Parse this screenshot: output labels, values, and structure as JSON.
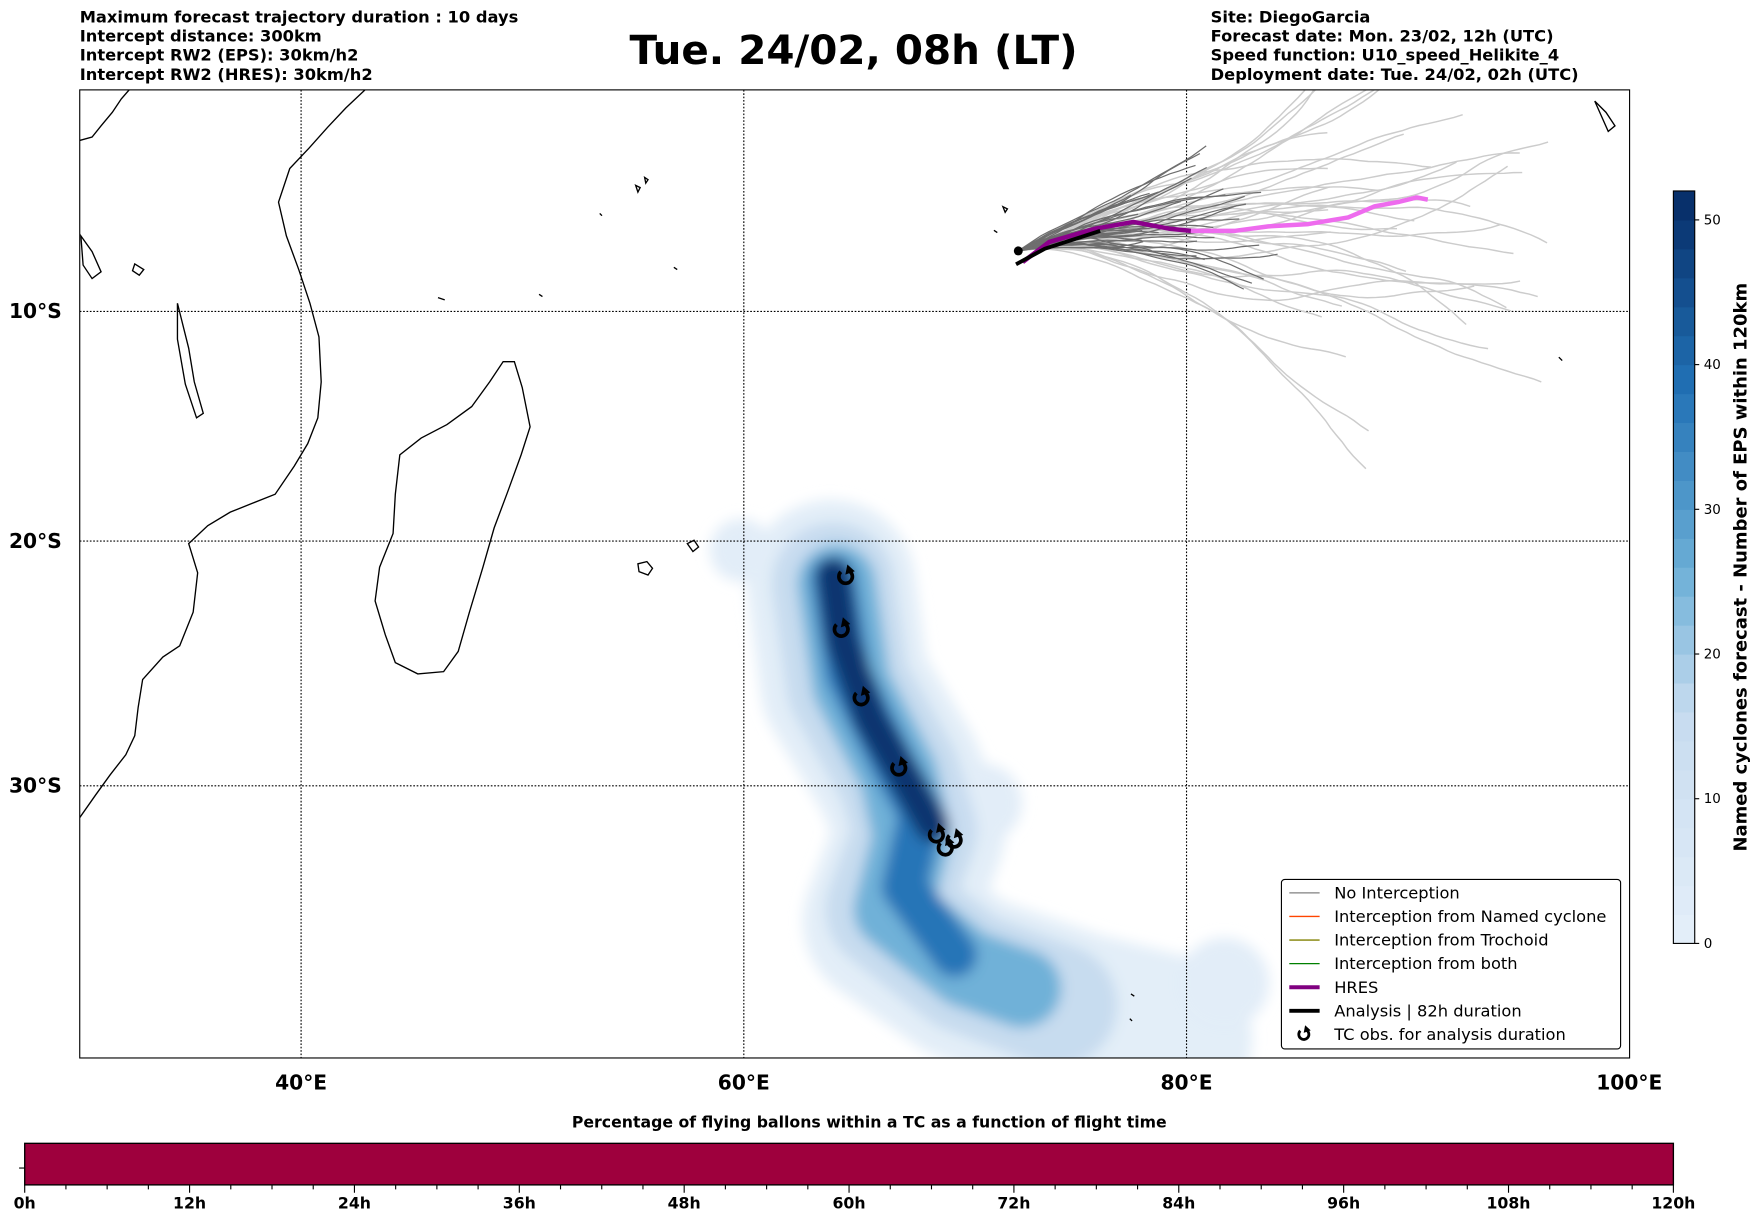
{
  "header": {
    "left": [
      "Maximum forecast trajectory duration : 10 days",
      "Intercept distance: 300km",
      "Intercept RW2 (EPS):  30km/h2",
      "Intercept RW2 (HRES): 30km/h2"
    ],
    "title": "Tue. 24/02, 08h (LT)",
    "right": [
      "Site: DiegoGarcia",
      "Forecast date: Mon. 23/02, 12h (UTC)",
      "Speed function: U10_speed_Helikite_4",
      "Deployment date: Tue. 24/02, 02h (UTC)"
    ]
  },
  "map": {
    "lon_range": [
      30,
      100
    ],
    "lat_range": [
      0,
      -40.6
    ],
    "lon_ticks": [
      {
        "value": 40,
        "label": "40°E"
      },
      {
        "value": 60,
        "label": "60°E"
      },
      {
        "value": 80,
        "label": "80°E"
      },
      {
        "value": 100,
        "label": "100°E"
      }
    ],
    "lat_ticks": [
      {
        "value": -10,
        "label": "10°S"
      },
      {
        "value": -20,
        "label": "20°S"
      },
      {
        "value": -30,
        "label": "30°S"
      }
    ],
    "site": {
      "lon": 72.4,
      "lat": -7.3
    },
    "hres_track": [
      [
        72.6,
        -7.8
      ],
      [
        73.8,
        -6.9
      ],
      [
        75.9,
        -6.3
      ],
      [
        77.6,
        -6.0
      ],
      [
        79.2,
        -6.3
      ],
      [
        80.2,
        -6.4
      ]
    ],
    "hres_track_extended": [
      [
        80.2,
        -6.4
      ],
      [
        82.2,
        -6.4
      ],
      [
        83.7,
        -6.2
      ],
      [
        85.5,
        -6.1
      ],
      [
        87.3,
        -5.8
      ],
      [
        88.5,
        -5.3
      ],
      [
        89.6,
        -5.1
      ],
      [
        90.4,
        -4.9
      ],
      [
        90.9,
        -5.0
      ]
    ],
    "analysis_track": [
      [
        72.3,
        -7.9
      ],
      [
        73.6,
        -7.2
      ],
      [
        76.1,
        -6.4
      ]
    ],
    "tc_obs": [
      [
        64.6,
        -21.5
      ],
      [
        64.4,
        -23.7
      ],
      [
        65.3,
        -26.5
      ],
      [
        67.0,
        -29.3
      ],
      [
        68.7,
        -31.9
      ],
      [
        69.5,
        -32.1
      ],
      [
        69.1,
        -32.4
      ]
    ]
  },
  "legend": [
    {
      "label": "No Interception",
      "color": "#808080",
      "kind": "line"
    },
    {
      "label": "Interception from Named cyclone",
      "color": "#ff4500",
      "kind": "line"
    },
    {
      "label": "Interception from Trochoid",
      "color": "#808000",
      "kind": "line"
    },
    {
      "label": "Interception from both",
      "color": "#008000",
      "kind": "line"
    },
    {
      "label": "HRES",
      "color": "#800080",
      "kind": "thick"
    },
    {
      "label": "Analysis | 82h duration",
      "color": "#000000",
      "kind": "thick"
    },
    {
      "label": "TC obs. for analysis duration",
      "color": "#000000",
      "kind": "symbol",
      "symbol": "↺"
    }
  ],
  "colorbar": {
    "label": "Named cyclones forecast - Number of EPS within 120km",
    "range": [
      0,
      52
    ],
    "ticks": [
      "0",
      "10",
      "20",
      "30",
      "40",
      "50"
    ],
    "low_color": "#e3eef9",
    "high_color": "#08306b"
  },
  "timebar": {
    "title": "Percentage of flying ballons within a TC as a function of flight time",
    "color": "#9e003d",
    "ticks": [
      "0h",
      "12h",
      "24h",
      "36h",
      "48h",
      "60h",
      "72h",
      "84h",
      "96h",
      "108h",
      "120h"
    ]
  }
}
